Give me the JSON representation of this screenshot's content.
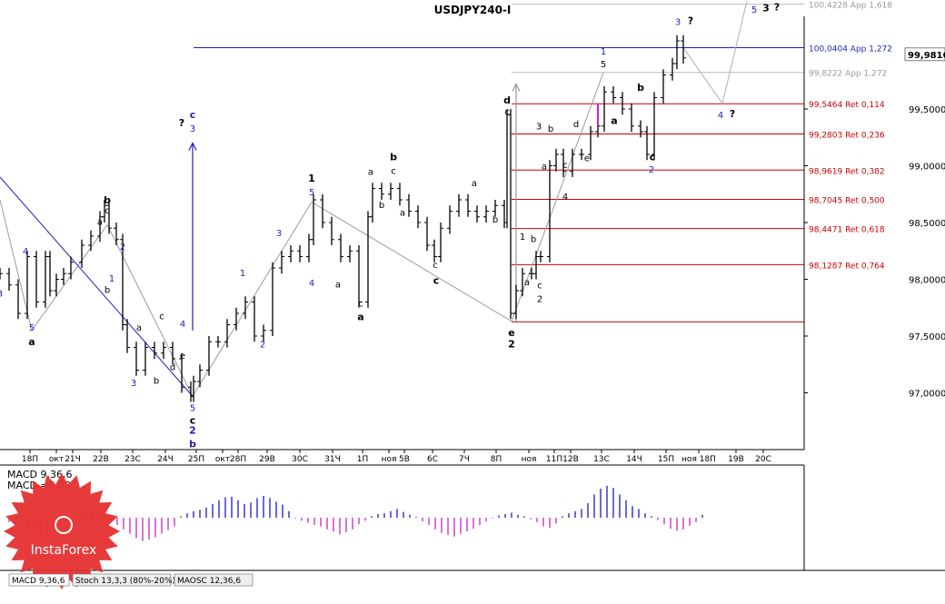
{
  "title": "USDJPY240-I",
  "current_price_label": "99,9810",
  "colors": {
    "price_bars": "#000000",
    "wave_blue": "#1f1fbf",
    "level_red": "#cc0000",
    "level_gray": "#999999",
    "macd_positive": "#2b2bcc",
    "macd_negative": "#cc33cc",
    "logo_red": "#e63030",
    "trend_line_blue": "#1f1fbf"
  },
  "chart_data": {
    "type": "line",
    "title": "USDJPY240-I",
    "y_ticks": [
      "97,0000",
      "97,5000",
      "98,0000",
      "98,5000",
      "99,0000",
      "99,5000",
      "99,9810"
    ],
    "x_ticks": [
      "18П",
      "окт",
      "21Ч",
      "22В",
      "23С",
      "24Ч",
      "25П",
      "окт",
      "28П",
      "29В",
      "30С",
      "31Ч",
      "1П",
      "ноя",
      "5В",
      "6С",
      "7Ч",
      "8П",
      "ноя",
      "11П",
      "12В",
      "13С",
      "14Ч",
      "15П",
      "ноя 18П",
      "19В",
      "20С"
    ],
    "ylim": [
      96.5,
      100.3
    ],
    "series": [
      {
        "name": "",
        "x": [
          0,
          10,
          20,
          30,
          40,
          50,
          55,
          62,
          70,
          78,
          90,
          100,
          110,
          115,
          120,
          128,
          135,
          140,
          150,
          160,
          170,
          180,
          190,
          200,
          210,
          213,
          220,
          230,
          240,
          250,
          260,
          270,
          280,
          290,
          300,
          310,
          320,
          330,
          340,
          345,
          355,
          365,
          375,
          385,
          395,
          405,
          410,
          420,
          430,
          440,
          450,
          460,
          470,
          478,
          485,
          495,
          505,
          515,
          525,
          535,
          545,
          555,
          558,
          562,
          568,
          575,
          585,
          590,
          595,
          605,
          612,
          620,
          630,
          640,
          650,
          658,
          665,
          675,
          685,
          695,
          705,
          712,
          720,
          730,
          740,
          745,
          752
        ],
        "values": [
          98.05,
          97.95,
          97.7,
          98.2,
          97.8,
          98.2,
          97.9,
          98.0,
          98.05,
          98.15,
          98.3,
          98.38,
          98.55,
          98.65,
          98.45,
          98.35,
          97.6,
          97.4,
          97.2,
          97.4,
          97.35,
          97.4,
          97.3,
          97.05,
          96.97,
          97.1,
          97.2,
          97.45,
          97.45,
          97.6,
          97.7,
          97.8,
          97.5,
          97.55,
          98.1,
          98.2,
          98.25,
          98.2,
          98.35,
          98.7,
          98.5,
          98.35,
          98.2,
          98.25,
          97.8,
          98.55,
          98.8,
          98.75,
          98.8,
          98.7,
          98.6,
          98.5,
          98.3,
          98.2,
          98.45,
          98.6,
          98.7,
          98.6,
          98.55,
          98.6,
          98.65,
          98.5,
          99.45,
          97.7,
          97.9,
          98.05,
          98.05,
          98.2,
          98.2,
          99.0,
          99.1,
          98.95,
          99.1,
          99.1,
          99.3,
          99.35,
          99.65,
          99.6,
          99.5,
          99.35,
          99.3,
          99.1,
          99.6,
          99.8,
          99.9,
          100.1,
          99.95
        ]
      }
    ],
    "levels": [
      {
        "label": "100,4228 App 1,618",
        "value": 100.4228,
        "kind": "gray"
      },
      {
        "label": "100,0404 App 1,272",
        "value": 100.0404,
        "kind": "blue"
      },
      {
        "label": "99,8222 App 1,272",
        "value": 99.8222,
        "kind": "gray"
      },
      {
        "label": "99,5464 Ret 0,114",
        "value": 99.5464,
        "kind": "red"
      },
      {
        "label": "99,2803 Ret 0,236",
        "value": 99.2803,
        "kind": "red"
      },
      {
        "label": "98,9619 Ret 0,382",
        "value": 98.9619,
        "kind": "red"
      },
      {
        "label": "98,7045 Ret 0,500",
        "value": 98.7045,
        "kind": "red"
      },
      {
        "label": "98,4471 Ret 0,618",
        "value": 98.4471,
        "kind": "red"
      },
      {
        "label": "98,1287 Ret 0,764",
        "value": 98.1287,
        "kind": "red"
      },
      {
        "label": "",
        "value": 97.625,
        "kind": "red"
      }
    ],
    "wave_labels": [
      {
        "text": "3",
        "x": 0,
        "y": 97.85,
        "c": "blue"
      },
      {
        "text": "4",
        "x": 28,
        "y": 98.22,
        "c": "blue"
      },
      {
        "text": "5",
        "x": 35,
        "y": 97.55,
        "c": "blue"
      },
      {
        "text": "a",
        "x": 35,
        "y": 97.42,
        "c": "black",
        "b": true
      },
      {
        "text": "b",
        "x": 118,
        "y": 98.67,
        "c": "black",
        "b": true
      },
      {
        "text": "c",
        "x": 118,
        "y": 98.58,
        "c": "black"
      },
      {
        "text": "a",
        "x": 110,
        "y": 98.48,
        "c": "black"
      },
      {
        "text": "2",
        "x": 135,
        "y": 98.26,
        "c": "blue"
      },
      {
        "text": "1",
        "x": 123,
        "y": 97.98,
        "c": "blue"
      },
      {
        "text": "b",
        "x": 118,
        "y": 97.88,
        "c": "black"
      },
      {
        "text": "c",
        "x": 178,
        "y": 97.65,
        "c": "black"
      },
      {
        "text": "a",
        "x": 153,
        "y": 97.55,
        "c": "black"
      },
      {
        "text": "d",
        "x": 190,
        "y": 97.2,
        "c": "black"
      },
      {
        "text": "e",
        "x": 201,
        "y": 97.3,
        "c": "black"
      },
      {
        "text": "4",
        "x": 201,
        "y": 97.58,
        "c": "blue"
      },
      {
        "text": "b",
        "x": 172,
        "y": 97.08,
        "c": "black"
      },
      {
        "text": "3",
        "x": 147,
        "y": 97.06,
        "c": "blue"
      },
      {
        "text": "5",
        "x": 212,
        "y": 96.84,
        "c": "blue"
      },
      {
        "text": "c",
        "x": 212,
        "y": 96.73,
        "c": "black",
        "b": true
      },
      {
        "text": "2",
        "x": 212,
        "y": 96.64,
        "c": "blue",
        "b": true
      },
      {
        "text": "b",
        "x": 212,
        "y": 96.52,
        "c": "blue",
        "b": true
      },
      {
        "text": "?",
        "x": 200,
        "y": 99.35,
        "c": "black",
        "b": true
      },
      {
        "text": "c",
        "x": 212,
        "y": 99.42,
        "c": "blue",
        "b": true
      },
      {
        "text": "3",
        "x": 212,
        "y": 99.3,
        "c": "blue"
      },
      {
        "text": "1",
        "x": 267,
        "y": 98.03,
        "c": "blue"
      },
      {
        "text": "2",
        "x": 289,
        "y": 97.4,
        "c": "blue"
      },
      {
        "text": "3",
        "x": 307,
        "y": 98.38,
        "c": "blue"
      },
      {
        "text": "4",
        "x": 343,
        "y": 97.94,
        "c": "blue"
      },
      {
        "text": "1",
        "x": 343,
        "y": 98.86,
        "c": "black",
        "b": true
      },
      {
        "text": "5",
        "x": 343,
        "y": 98.74,
        "c": "blue"
      },
      {
        "text": "a",
        "x": 372,
        "y": 97.93,
        "c": "black"
      },
      {
        "text": "c",
        "x": 397,
        "y": 97.76,
        "c": "black"
      },
      {
        "text": "a",
        "x": 397,
        "y": 97.64,
        "c": "black",
        "b": true
      },
      {
        "text": "b",
        "x": 433,
        "y": 99.05,
        "c": "black",
        "b": true
      },
      {
        "text": "a",
        "x": 408,
        "y": 98.92,
        "c": "black"
      },
      {
        "text": "c",
        "x": 433,
        "y": 98.93,
        "c": "black"
      },
      {
        "text": "b",
        "x": 420,
        "y": 98.63,
        "c": "black"
      },
      {
        "text": "a",
        "x": 443,
        "y": 98.56,
        "c": "black"
      },
      {
        "text": "c",
        "x": 479,
        "y": 98.1,
        "c": "black"
      },
      {
        "text": "c",
        "x": 480,
        "y": 97.96,
        "c": "black",
        "b": true
      },
      {
        "text": "a",
        "x": 522,
        "y": 98.82,
        "c": "black"
      },
      {
        "text": "b",
        "x": 545,
        "y": 98.5,
        "c": "black"
      },
      {
        "text": "d",
        "x": 558,
        "y": 99.55,
        "c": "black",
        "b": true
      },
      {
        "text": "c",
        "x": 558,
        "y": 99.45,
        "c": "black"
      },
      {
        "text": "1",
        "x": 575,
        "y": 98.35,
        "c": "black"
      },
      {
        "text": "b",
        "x": 587,
        "y": 98.33,
        "c": "black"
      },
      {
        "text": "a",
        "x": 580,
        "y": 97.95,
        "c": "black"
      },
      {
        "text": "c",
        "x": 594,
        "y": 97.92,
        "c": "black"
      },
      {
        "text": "2",
        "x": 594,
        "y": 97.8,
        "c": "black"
      },
      {
        "text": "e",
        "x": 563,
        "y": 97.5,
        "c": "black",
        "b": true
      },
      {
        "text": "2",
        "x": 563,
        "y": 97.4,
        "c": "black",
        "b": true
      },
      {
        "text": "3",
        "x": 593,
        "y": 99.32,
        "c": "black"
      },
      {
        "text": "b",
        "x": 606,
        "y": 99.3,
        "c": "black"
      },
      {
        "text": "a",
        "x": 599,
        "y": 98.97,
        "c": "black"
      },
      {
        "text": "d",
        "x": 634,
        "y": 99.34,
        "c": "black"
      },
      {
        "text": "c",
        "x": 622,
        "y": 98.98,
        "c": "black"
      },
      {
        "text": "e",
        "x": 646,
        "y": 99.04,
        "c": "black"
      },
      {
        "text": "4",
        "x": 622,
        "y": 98.7,
        "c": "black"
      },
      {
        "text": "1",
        "x": 664,
        "y": 99.98,
        "c": "blue"
      },
      {
        "text": "5",
        "x": 664,
        "y": 99.87,
        "c": "black"
      },
      {
        "text": "b",
        "x": 705,
        "y": 99.66,
        "c": "black",
        "b": true
      },
      {
        "text": "a",
        "x": 676,
        "y": 99.37,
        "c": "black",
        "b": true
      },
      {
        "text": "c",
        "x": 718,
        "y": 99.05,
        "c": "black",
        "b": true
      },
      {
        "text": "2",
        "x": 717,
        "y": 98.94,
        "c": "blue"
      },
      {
        "text": "3",
        "x": 746,
        "y": 100.24,
        "c": "blue"
      },
      {
        "text": "?",
        "x": 760,
        "y": 100.25,
        "c": "black",
        "b": true
      },
      {
        "text": "4",
        "x": 793,
        "y": 99.42,
        "c": "blue"
      },
      {
        "text": "?",
        "x": 806,
        "y": 99.43,
        "c": "black",
        "b": true
      },
      {
        "text": "5",
        "x": 830,
        "y": 100.35,
        "c": "blue"
      },
      {
        "text": "3",
        "x": 843,
        "y": 100.36,
        "c": "black",
        "b": true
      },
      {
        "text": "?",
        "x": 855,
        "y": 100.37,
        "c": "black",
        "b": true
      }
    ],
    "projection": {
      "x": [
        752,
        795,
        822
      ],
      "values": [
        100.04,
        99.55,
        100.45
      ]
    },
    "trend_line": {
      "x": [
        0,
        212
      ],
      "values": [
        98.9,
        96.97
      ]
    },
    "gray_lines": [
      {
        "x": [
          0,
          35
        ],
        "values": [
          98.7,
          97.55
        ]
      },
      {
        "x": [
          35,
          118
        ],
        "values": [
          97.55,
          98.48
        ]
      },
      {
        "x": [
          118,
          212
        ],
        "values": [
          98.48,
          96.97
        ]
      },
      {
        "x": [
          212,
          343
        ],
        "values": [
          96.97,
          98.68
        ]
      },
      {
        "x": [
          343,
          563
        ],
        "values": [
          98.68,
          97.63
        ]
      },
      {
        "x": [
          563,
          664
        ],
        "values": [
          97.63,
          99.82
        ]
      }
    ],
    "arrows": [
      {
        "x": 212,
        "from": 97.55,
        "to": 99.2,
        "c": "blue"
      },
      {
        "x": 568,
        "from": 97.63,
        "to": 99.72,
        "c": "gray"
      }
    ],
    "macd": {
      "label_top": "MACD 9,36,6",
      "label_value": "MACD =0,02",
      "values": [
        -0.6,
        -0.8,
        -1.0,
        -1.4,
        -2.0,
        -2.4,
        -2.2,
        -1.8,
        -1.2,
        -0.9,
        -0.6,
        0.3,
        0.8,
        1.2,
        1.0,
        0.6,
        -0.4,
        -1.0,
        -1.6,
        -2.2,
        -2.8,
        -3.2,
        -3.0,
        -2.7,
        -2.2,
        -1.7,
        -1.2,
        0.2,
        0.6,
        0.9,
        1.1,
        1.4,
        1.9,
        2.4,
        2.8,
        2.9,
        2.4,
        1.9,
        2.1,
        2.7,
        3.0,
        2.7,
        2.2,
        1.8,
        0.9,
        -0.1,
        -0.4,
        -0.7,
        -1.0,
        -1.2,
        -1.6,
        -1.9,
        -2.3,
        -2.0,
        -1.6,
        -0.9,
        -0.4,
        0.2,
        0.5,
        0.6,
        0.9,
        1.2,
        0.8,
        0.4,
        0.1,
        -0.5,
        -1.0,
        -1.6,
        -2.1,
        -2.4,
        -2.6,
        -2.2,
        -1.9,
        -1.5,
        -1.0,
        -0.5,
        -0.1,
        0.3,
        0.5,
        0.7,
        0.4,
        0.2,
        -0.2,
        -0.6,
        -1.2,
        -1.4,
        -0.8,
        0.2,
        0.6,
        0.9,
        1.2,
        2.0,
        3.2,
        4.0,
        4.4,
        4.1,
        3.2,
        2.4,
        1.6,
        1.2,
        0.6,
        0.2,
        -0.3,
        -0.9,
        -1.5,
        -1.8,
        -1.6,
        -1.1,
        -0.6,
        0.4
      ]
    },
    "bottom_tabs": [
      "MACD 9,36,6",
      "Stoch 13,3,3 (80%-20%)",
      "MAOSC 12,36,6"
    ]
  },
  "logo_text": "InstaForex"
}
